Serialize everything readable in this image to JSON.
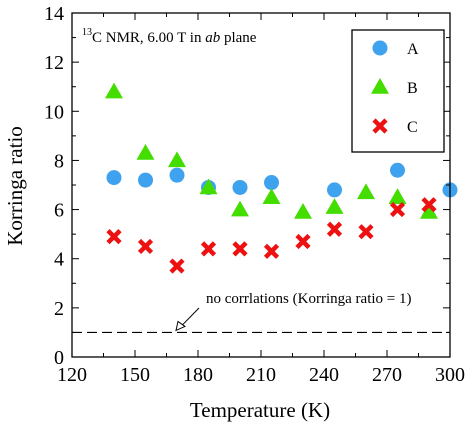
{
  "chart_data": {
    "type": "scatter",
    "title": "",
    "annotation_main": "C NMR, 6.00 T in ",
    "annotation_sup": "13",
    "annotation_italic": "ab",
    "annotation_tail": " plane",
    "xlabel": "Temperature (K)",
    "ylabel": "Korringa ratio",
    "xlim": [
      120,
      300
    ],
    "ylim": [
      0,
      14
    ],
    "xticks": [
      120,
      150,
      180,
      210,
      240,
      270,
      300
    ],
    "yticks": [
      0,
      2,
      4,
      6,
      8,
      10,
      12,
      14
    ],
    "grid": false,
    "legend_position": "top-right",
    "reference_line": {
      "y": 1,
      "label": "no corrlations (Korringa ratio = 1)",
      "style": "dashed"
    },
    "series": [
      {
        "name": "A",
        "marker": "circle",
        "color": "#3fa2ee",
        "points": [
          [
            140,
            7.3
          ],
          [
            155,
            7.2
          ],
          [
            170,
            7.4
          ],
          [
            185,
            6.9
          ],
          [
            200,
            6.9
          ],
          [
            215,
            7.1
          ],
          [
            245,
            6.8
          ],
          [
            275,
            7.6
          ],
          [
            300,
            6.8
          ]
        ]
      },
      {
        "name": "B",
        "marker": "triangle",
        "color": "#44dd00",
        "points": [
          [
            140,
            10.8
          ],
          [
            155,
            8.3
          ],
          [
            170,
            8.0
          ],
          [
            185,
            6.9
          ],
          [
            200,
            6.0
          ],
          [
            215,
            6.5
          ],
          [
            230,
            5.9
          ],
          [
            245,
            6.1
          ],
          [
            260,
            6.7
          ],
          [
            275,
            6.5
          ],
          [
            290,
            5.9
          ]
        ]
      },
      {
        "name": "C",
        "marker": "x",
        "color": "#ee1111",
        "points": [
          [
            140,
            4.9
          ],
          [
            155,
            4.5
          ],
          [
            170,
            3.7
          ],
          [
            185,
            4.4
          ],
          [
            200,
            4.4
          ],
          [
            215,
            4.3
          ],
          [
            230,
            4.7
          ],
          [
            245,
            5.2
          ],
          [
            260,
            5.1
          ],
          [
            275,
            6.0
          ],
          [
            290,
            6.2
          ]
        ]
      }
    ]
  }
}
